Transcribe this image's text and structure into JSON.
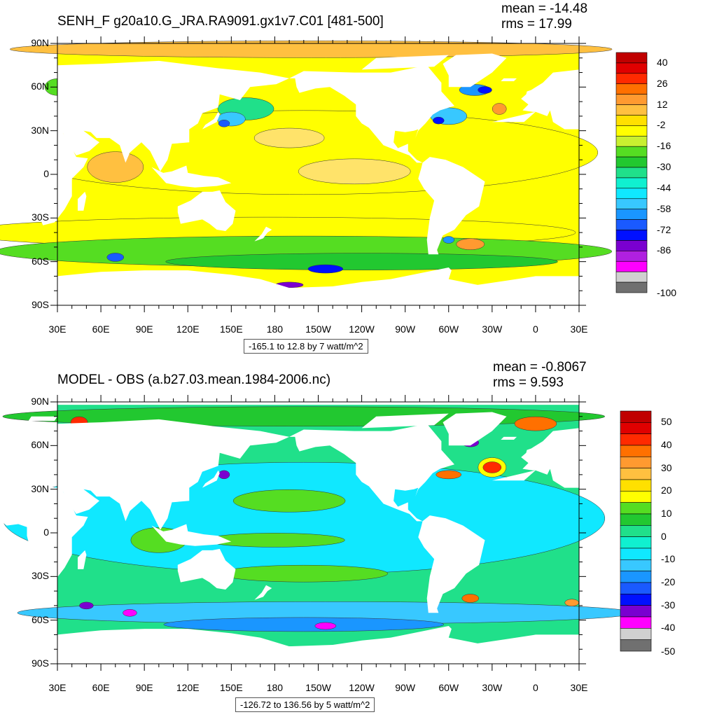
{
  "panels": [
    {
      "title": "SENH_F g20a10.G_JRA.RA9091.gx1v7.C01 [481-500]",
      "mean_line": "mean = -14.48",
      "rms_line": "rms = 17.99",
      "range_note": "-165.1 to 12.8 by 7 watt/m^2",
      "colorbar_labels": [
        "40",
        "26",
        "12",
        "-2",
        "-16",
        "-30",
        "-44",
        "-58",
        "-72",
        "-86",
        "-100"
      ],
      "colorbar_colors": [
        "#c00000",
        "#e00000",
        "#ff2a00",
        "#ff7000",
        "#ff9a30",
        "#ffc040",
        "#ffe000",
        "#ffff00",
        "#c8f030",
        "#55dd22",
        "#22c830",
        "#20e08a",
        "#10f0d0",
        "#10e8ff",
        "#38c8ff",
        "#1a96ff",
        "#1a5aff",
        "#0010ff",
        "#7a00d0",
        "#b020e0",
        "#ff00ff",
        "#d0d0d0",
        "#707070"
      ]
    },
    {
      "title": "MODEL - OBS (a.b27.03.mean.1984-2006.nc)",
      "mean_line": "mean = -0.8067",
      "rms_line": "rms = 9.593",
      "range_note": "-126.72 to 136.56 by 5 watt/m^2",
      "colorbar_labels": [
        "50",
        "40",
        "30",
        "20",
        "10",
        "0",
        "-10",
        "-20",
        "-30",
        "-40",
        "-50"
      ],
      "colorbar_colors": [
        "#c00000",
        "#e00000",
        "#ff2a00",
        "#ff7000",
        "#ff9a30",
        "#ffc040",
        "#ffe000",
        "#ffff00",
        "#55dd22",
        "#22c830",
        "#20e08a",
        "#10f0d0",
        "#10e8ff",
        "#38c8ff",
        "#1a96ff",
        "#1a5aff",
        "#0010ff",
        "#7a00d0",
        "#ff00ff",
        "#d0d0d0",
        "#707070"
      ]
    }
  ],
  "chart_data": [
    {
      "type": "heatmap",
      "title": "SENH_F g20a10.G_JRA.RA9091.gx1v7.C01 [481-500]",
      "x_tick_labels": [
        "30E",
        "60E",
        "90E",
        "120E",
        "150E",
        "180",
        "150W",
        "120W",
        "90W",
        "60W",
        "30W",
        "0",
        "30E"
      ],
      "y_tick_labels": [
        "90N",
        "60N",
        "30N",
        "0",
        "30S",
        "60S",
        "90S"
      ],
      "x_range": [
        30,
        390
      ],
      "y_range": [
        -90,
        90
      ],
      "contour_min": -165.1,
      "contour_max": 12.8,
      "contour_interval": 7,
      "units": "watt/m^2",
      "mean": -14.48,
      "rms": 17.99
    },
    {
      "type": "heatmap",
      "title": "MODEL - OBS (a.b27.03.mean.1984-2006.nc)",
      "x_tick_labels": [
        "30E",
        "60E",
        "90E",
        "120E",
        "150E",
        "180",
        "150W",
        "120W",
        "90W",
        "60W",
        "30W",
        "0",
        "30E"
      ],
      "y_tick_labels": [
        "90N",
        "60N",
        "30N",
        "0",
        "30S",
        "60S",
        "90S"
      ],
      "x_range": [
        30,
        390
      ],
      "y_range": [
        -90,
        90
      ],
      "contour_min": -126.72,
      "contour_max": 136.56,
      "contour_interval": 5,
      "units": "watt/m^2",
      "mean": -0.8067,
      "rms": 9.593
    }
  ]
}
